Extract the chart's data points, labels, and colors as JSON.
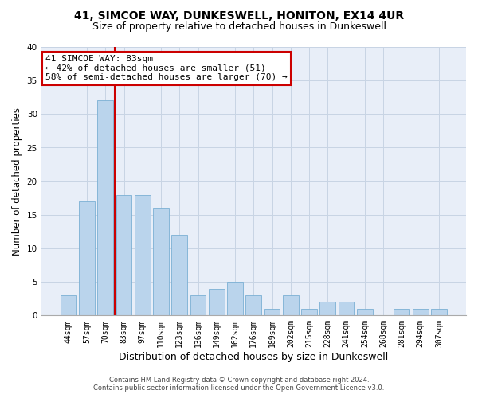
{
  "title": "41, SIMCOE WAY, DUNKESWELL, HONITON, EX14 4UR",
  "subtitle": "Size of property relative to detached houses in Dunkeswell",
  "xlabel": "Distribution of detached houses by size in Dunkeswell",
  "ylabel": "Number of detached properties",
  "categories": [
    "44sqm",
    "57sqm",
    "70sqm",
    "83sqm",
    "97sqm",
    "110sqm",
    "123sqm",
    "136sqm",
    "149sqm",
    "162sqm",
    "176sqm",
    "189sqm",
    "202sqm",
    "215sqm",
    "228sqm",
    "241sqm",
    "254sqm",
    "268sqm",
    "281sqm",
    "294sqm",
    "307sqm"
  ],
  "values": [
    3,
    17,
    32,
    18,
    18,
    16,
    12,
    3,
    4,
    5,
    3,
    1,
    3,
    1,
    2,
    2,
    1,
    0,
    1,
    1,
    1
  ],
  "bar_color": "#bad4ec",
  "bar_edge_color": "#7aafd4",
  "vline_index": 2.5,
  "annotation_line1": "41 SIMCOE WAY: 83sqm",
  "annotation_line2": "← 42% of detached houses are smaller (51)",
  "annotation_line3": "58% of semi-detached houses are larger (70) →",
  "annotation_box_color": "#ffffff",
  "annotation_box_edge_color": "#cc0000",
  "vline_color": "#cc0000",
  "ylim": [
    0,
    40
  ],
  "yticks": [
    0,
    5,
    10,
    15,
    20,
    25,
    30,
    35,
    40
  ],
  "grid_color": "#c8d4e4",
  "background_color": "#e8eef8",
  "footer_line1": "Contains HM Land Registry data © Crown copyright and database right 2024.",
  "footer_line2": "Contains public sector information licensed under the Open Government Licence v3.0.",
  "title_fontsize": 10,
  "subtitle_fontsize": 9,
  "tick_fontsize": 7,
  "ylabel_fontsize": 8.5,
  "xlabel_fontsize": 9,
  "annotation_fontsize": 8,
  "footer_fontsize": 6
}
